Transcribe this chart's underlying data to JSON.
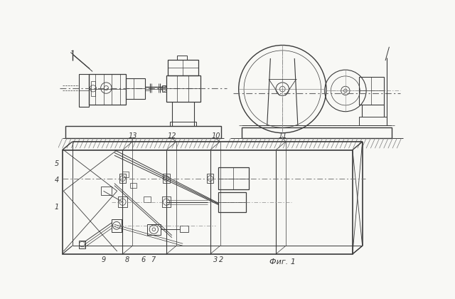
{
  "bg_color": "#f8f8f5",
  "line_color": "#3a3a3a",
  "fig_width": 6.4,
  "fig_height": 4.2,
  "caption": "Фиг. 1"
}
